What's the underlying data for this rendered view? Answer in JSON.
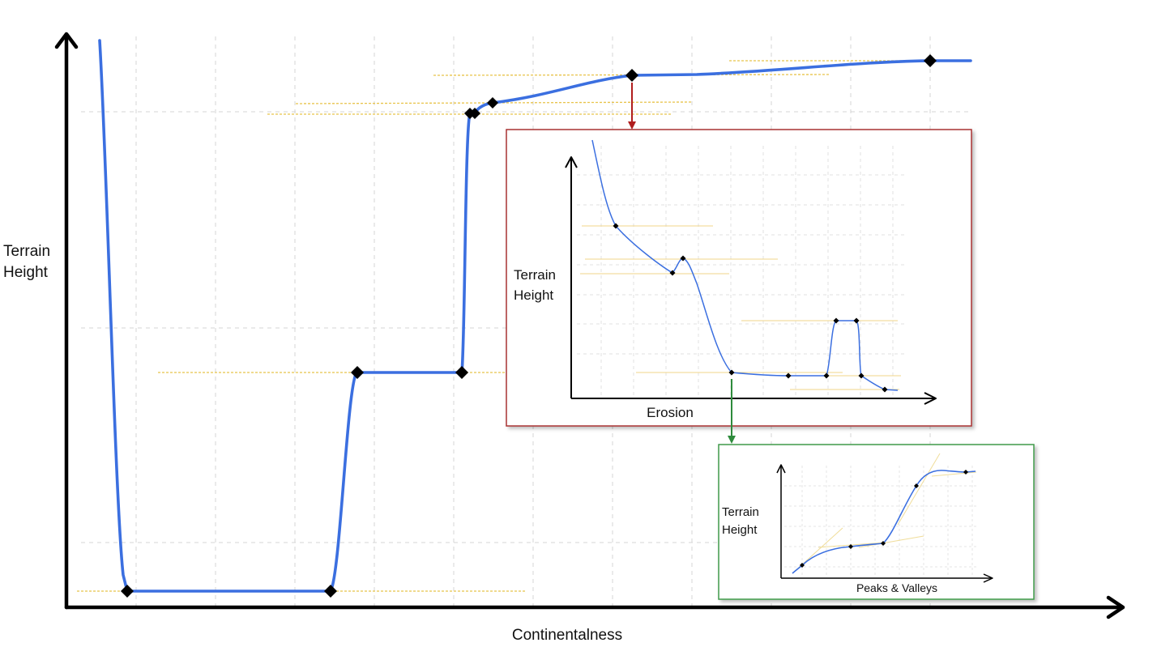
{
  "main_chart": {
    "ylabel_line1": "Terrain",
    "ylabel_line2": "Height",
    "xlabel": "Continentalness",
    "curve_color": "#3b6fe0",
    "guide_color": "#e8c34a",
    "grid": true
  },
  "erosion_inset": {
    "border_color": "#a83232",
    "connector_color": "#b01e1e",
    "ylabel_line1": "Terrain",
    "ylabel_line2": "Height",
    "xlabel": "Erosion"
  },
  "pv_inset": {
    "border_color": "#3f9a4a",
    "connector_color": "#2e8b3c",
    "ylabel_line1": "Terrain",
    "ylabel_line2": "Height",
    "xlabel": "Peaks & Valleys"
  }
}
